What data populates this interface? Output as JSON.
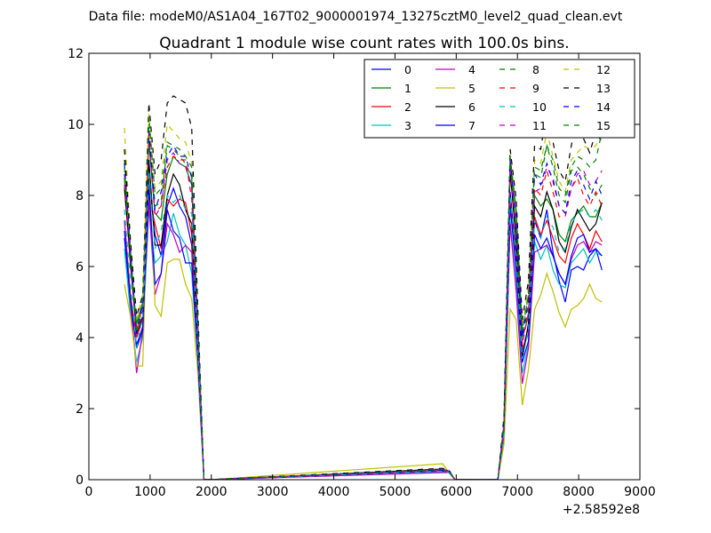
{
  "chart_data": {
    "type": "line",
    "suptitle": "Data file: modeM0/AS1A04_167T02_9000001974_13275cztM0_level2_quad_clean.evt",
    "title": "Quadrant 1 module wise count rates with 100.0s bins.",
    "xlabel": "",
    "ylabel": "",
    "x_offset_label": "+2.58592e8",
    "xlim": [
      0,
      9000
    ],
    "ylim": [
      0,
      12
    ],
    "xticks": [
      "0",
      "1000",
      "2000",
      "3000",
      "4000",
      "5000",
      "6000",
      "7000",
      "8000",
      "9000"
    ],
    "yticks": [
      "0",
      "2",
      "4",
      "6",
      "8",
      "10",
      "12"
    ],
    "grid": false,
    "legend_position": "top-right",
    "x": [
      580,
      680,
      780,
      880,
      980,
      1080,
      1180,
      1280,
      1380,
      1480,
      1580,
      1680,
      1780,
      1880,
      1980,
      5780,
      5880,
      5980,
      6680,
      6780,
      6880,
      6980,
      7080,
      7180,
      7280,
      7380,
      7480,
      7580,
      7680,
      7780,
      7880,
      7980,
      8080,
      8180,
      8280,
      8380
    ],
    "series": [
      {
        "name": "0",
        "color": "#0000ff",
        "dash": "solid",
        "values": [
          6.8,
          5.0,
          3.8,
          4.3,
          8.5,
          6.9,
          6.3,
          7.7,
          8.2,
          7.7,
          7.4,
          6.6,
          3.6,
          0.0,
          0.0,
          0.25,
          0.22,
          0.0,
          0.0,
          1.4,
          8.1,
          6.3,
          3.6,
          4.3,
          7.3,
          6.8,
          7.6,
          6.4,
          5.6,
          5.0,
          5.9,
          6.0,
          5.9,
          6.3,
          6.5,
          5.9
        ]
      },
      {
        "name": "1",
        "color": "#008000",
        "dash": "solid",
        "values": [
          8.5,
          6.0,
          4.4,
          5.0,
          9.5,
          7.5,
          7.3,
          8.6,
          9.1,
          8.9,
          8.8,
          8.3,
          4.0,
          0.0,
          0.0,
          0.28,
          0.24,
          0.0,
          0.0,
          1.5,
          8.8,
          7.0,
          4.0,
          4.6,
          8.0,
          7.7,
          7.9,
          7.6,
          6.9,
          6.7,
          7.3,
          7.5,
          7.7,
          7.4,
          7.4,
          7.8
        ]
      },
      {
        "name": "2",
        "color": "#ff0000",
        "dash": "solid",
        "values": [
          7.3,
          5.2,
          4.0,
          4.5,
          8.0,
          7.2,
          6.5,
          7.9,
          7.7,
          7.9,
          7.8,
          6.9,
          3.6,
          0.0,
          0.0,
          0.25,
          0.22,
          0.0,
          0.0,
          1.4,
          7.9,
          6.0,
          3.7,
          4.1,
          7.4,
          6.9,
          7.3,
          6.8,
          6.3,
          6.1,
          6.8,
          7.2,
          6.9,
          6.5,
          7.0,
          6.7
        ]
      },
      {
        "name": "3",
        "color": "#00bfbf",
        "dash": "solid",
        "values": [
          6.5,
          4.7,
          3.3,
          4.0,
          7.6,
          6.1,
          6.3,
          6.7,
          7.5,
          6.9,
          6.6,
          5.8,
          3.4,
          0.0,
          0.0,
          0.22,
          0.2,
          0.0,
          0.0,
          1.3,
          7.3,
          5.5,
          3.0,
          3.8,
          6.7,
          6.2,
          6.6,
          5.9,
          5.5,
          5.4,
          6.1,
          6.3,
          6.5,
          6.1,
          6.4,
          6.3
        ]
      },
      {
        "name": "4",
        "color": "#bf00bf",
        "dash": "solid",
        "values": [
          7.3,
          5.0,
          3.0,
          4.2,
          7.8,
          5.2,
          5.8,
          7.2,
          6.9,
          6.4,
          6.6,
          6.4,
          3.5,
          0.0,
          0.0,
          0.2,
          0.2,
          0.0,
          0.0,
          1.2,
          7.2,
          5.3,
          2.7,
          3.7,
          6.4,
          6.5,
          6.6,
          6.3,
          5.8,
          5.5,
          6.2,
          6.6,
          6.7,
          6.4,
          6.7,
          6.6
        ]
      },
      {
        "name": "5",
        "color": "#bfbf00",
        "dash": "solid",
        "values": [
          5.5,
          4.6,
          3.2,
          3.2,
          9.0,
          4.9,
          4.6,
          6.1,
          6.2,
          6.2,
          5.5,
          5.1,
          3.0,
          0.0,
          0.0,
          0.45,
          0.2,
          0.0,
          0.0,
          1.0,
          4.8,
          4.5,
          2.1,
          3.1,
          4.8,
          5.2,
          5.8,
          5.3,
          4.7,
          4.3,
          4.8,
          4.9,
          5.1,
          5.5,
          5.1,
          5.0
        ]
      },
      {
        "name": "6",
        "color": "#000000",
        "dash": "solid",
        "values": [
          8.2,
          6.1,
          4.1,
          4.6,
          9.0,
          6.6,
          6.6,
          8.0,
          8.6,
          8.3,
          7.6,
          7.2,
          3.9,
          0.0,
          0.0,
          0.3,
          0.24,
          0.0,
          0.0,
          1.5,
          8.7,
          6.7,
          3.4,
          4.4,
          7.7,
          7.4,
          8.1,
          7.6,
          6.7,
          6.4,
          7.1,
          7.6,
          7.3,
          7.0,
          7.2,
          7.8
        ]
      },
      {
        "name": "7",
        "color": "#0000ff",
        "dash": "solid",
        "values": [
          7.0,
          5.0,
          3.7,
          4.2,
          8.3,
          5.5,
          5.8,
          7.6,
          7.0,
          6.8,
          6.1,
          6.1,
          3.4,
          0.0,
          0.0,
          0.25,
          0.22,
          0.0,
          0.0,
          1.4,
          7.7,
          5.9,
          3.3,
          3.9,
          6.9,
          6.5,
          6.8,
          6.3,
          5.8,
          5.5,
          6.3,
          6.8,
          6.9,
          6.4,
          6.5,
          6.3
        ]
      },
      {
        "name": "8",
        "color": "#008000",
        "dash": "dashed",
        "values": [
          9.0,
          6.6,
          4.2,
          4.9,
          10.0,
          7.7,
          7.8,
          9.4,
          9.3,
          9.1,
          8.9,
          8.5,
          4.4,
          0.0,
          0.0,
          0.28,
          0.24,
          0.0,
          0.0,
          1.6,
          9.0,
          7.5,
          4.1,
          5.2,
          8.6,
          8.5,
          9.4,
          8.8,
          8.0,
          7.8,
          8.7,
          8.8,
          8.6,
          8.2,
          8.0,
          8.3
        ]
      },
      {
        "name": "9",
        "color": "#ff0000",
        "dash": "dashed",
        "values": [
          8.3,
          6.2,
          4.2,
          4.9,
          9.7,
          7.5,
          7.7,
          8.8,
          9.1,
          9.0,
          9.0,
          7.9,
          4.1,
          0.0,
          0.0,
          0.26,
          0.22,
          0.0,
          0.0,
          1.5,
          8.8,
          7.0,
          3.9,
          4.8,
          8.2,
          8.0,
          8.7,
          8.1,
          7.4,
          7.4,
          8.2,
          8.5,
          8.0,
          7.7,
          8.1,
          7.7
        ]
      },
      {
        "name": "10",
        "color": "#00bfbf",
        "dash": "dashed",
        "values": [
          7.6,
          5.5,
          3.7,
          4.6,
          8.7,
          6.5,
          7.0,
          8.0,
          7.8,
          8.0,
          7.6,
          7.5,
          3.7,
          0.0,
          0.0,
          0.24,
          0.2,
          0.0,
          0.0,
          1.3,
          8.0,
          6.3,
          3.4,
          4.2,
          7.3,
          6.8,
          7.4,
          7.1,
          6.4,
          6.5,
          7.2,
          7.5,
          7.6,
          7.4,
          7.6,
          7.3
        ]
      },
      {
        "name": "11",
        "color": "#bf00bf",
        "dash": "dashed",
        "values": [
          8.6,
          6.2,
          4.1,
          4.8,
          9.6,
          7.4,
          7.7,
          9.0,
          9.2,
          8.9,
          8.8,
          8.2,
          4.1,
          0.0,
          0.0,
          0.27,
          0.23,
          0.0,
          0.0,
          1.5,
          8.8,
          7.1,
          3.8,
          4.7,
          8.1,
          8.2,
          8.8,
          8.5,
          7.7,
          7.5,
          8.2,
          8.6,
          8.7,
          8.3,
          8.4,
          8.7
        ]
      },
      {
        "name": "12",
        "color": "#bfbf00",
        "dash": "dashed",
        "values": [
          9.9,
          6.8,
          4.5,
          5.2,
          10.3,
          8.2,
          8.4,
          10.0,
          9.8,
          9.6,
          9.5,
          8.9,
          4.6,
          0.0,
          0.0,
          0.3,
          0.25,
          0.0,
          0.0,
          1.7,
          9.3,
          7.8,
          4.3,
          5.4,
          9.0,
          8.9,
          9.8,
          9.1,
          8.4,
          8.1,
          9.0,
          9.2,
          9.4,
          9.3,
          9.4,
          9.7
        ]
      },
      {
        "name": "13",
        "color": "#000000",
        "dash": "dashed",
        "values": [
          9.3,
          6.7,
          4.6,
          5.2,
          10.6,
          8.6,
          9.0,
          10.6,
          10.8,
          10.7,
          10.6,
          9.9,
          4.8,
          0.0,
          0.0,
          0.32,
          0.27,
          0.0,
          0.0,
          1.8,
          9.3,
          7.9,
          4.5,
          5.6,
          9.4,
          9.3,
          10.4,
          9.5,
          8.7,
          8.4,
          9.4,
          10.2,
          9.6,
          9.2,
          9.8,
          9.5
        ]
      },
      {
        "name": "14",
        "color": "#0000ff",
        "dash": "dashed",
        "values": [
          8.9,
          6.5,
          4.1,
          5.0,
          9.8,
          7.6,
          8.1,
          9.1,
          9.4,
          9.1,
          9.1,
          8.5,
          4.3,
          0.0,
          0.0,
          0.28,
          0.24,
          0.0,
          0.0,
          1.6,
          9.0,
          7.4,
          4.0,
          5.0,
          8.6,
          8.3,
          8.9,
          8.4,
          7.7,
          7.5,
          8.4,
          8.7,
          8.3,
          7.9,
          8.4,
          8.0
        ]
      },
      {
        "name": "15",
        "color": "#008000",
        "dash": "dashed",
        "values": [
          8.8,
          6.4,
          4.2,
          5.1,
          10.2,
          8.0,
          8.2,
          9.5,
          9.4,
          9.3,
          9.1,
          8.8,
          4.4,
          0.0,
          0.0,
          0.29,
          0.25,
          0.0,
          0.0,
          1.6,
          9.1,
          7.6,
          4.2,
          5.2,
          8.8,
          8.7,
          9.4,
          9.0,
          8.2,
          8.0,
          8.8,
          9.1,
          9.0,
          8.8,
          9.0,
          9.8
        ]
      }
    ]
  }
}
